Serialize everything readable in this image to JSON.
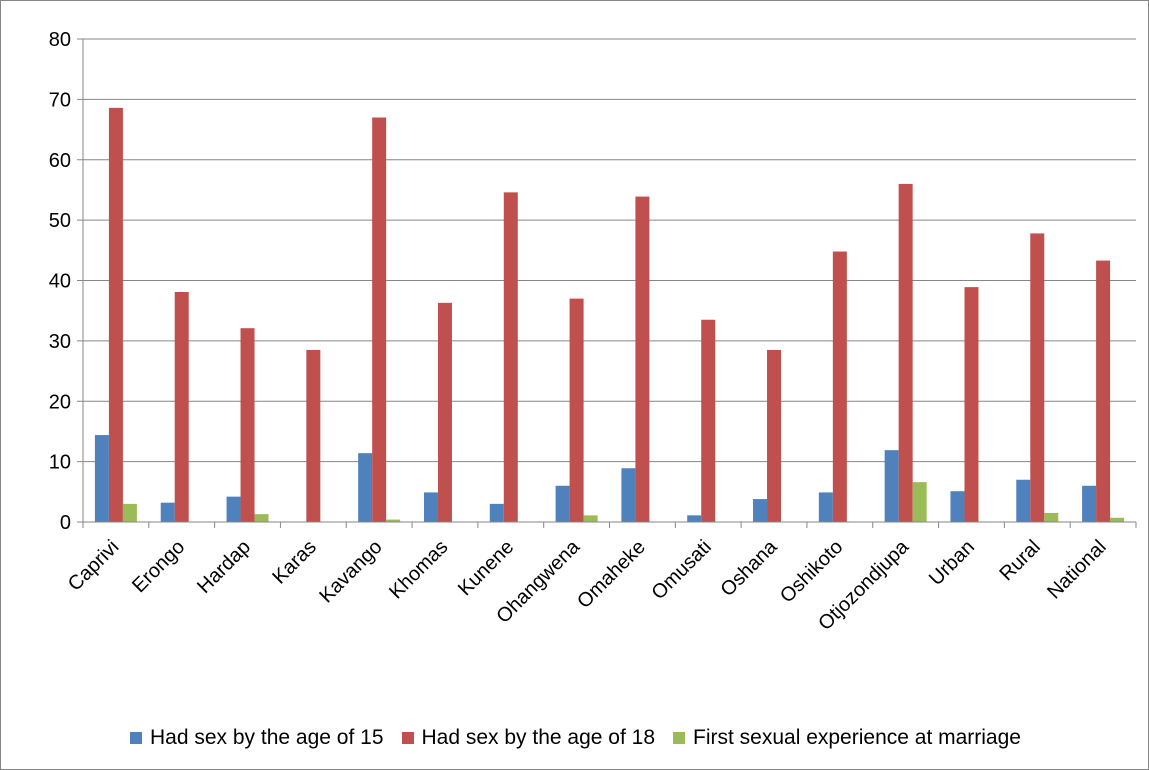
{
  "chart_data": {
    "type": "bar",
    "title": "",
    "xlabel": "",
    "ylabel": "",
    "ylim": [
      0,
      80
    ],
    "yticks": [
      0,
      10,
      20,
      30,
      40,
      50,
      60,
      70,
      80
    ],
    "grid": true,
    "legend_position": "bottom",
    "categories": [
      "Caprivi",
      "Erongo",
      "Hardap",
      "Karas",
      "Kavango",
      "Khomas",
      "Kunene",
      "Ohangwena",
      "Omaheke",
      "Omusati",
      "Oshana",
      "Oshikoto",
      "Otjozondjupa",
      "Urban",
      "Rural",
      "National"
    ],
    "series": [
      {
        "name": "Had sex by the age of 15",
        "color": "#4F81BD",
        "values": [
          14.4,
          3.2,
          4.2,
          0,
          11.4,
          4.9,
          3.0,
          6.0,
          8.9,
          1.1,
          3.8,
          4.9,
          11.9,
          5.1,
          7.0,
          6.0
        ]
      },
      {
        "name": "Had sex by the age of 18",
        "color": "#C0504D",
        "values": [
          68.6,
          38.1,
          32.1,
          28.5,
          67.0,
          36.3,
          54.6,
          37.0,
          53.9,
          33.5,
          28.5,
          44.8,
          56.0,
          38.9,
          47.8,
          43.3
        ]
      },
      {
        "name": "First sexual experience at marriage",
        "color": "#9BBB59",
        "values": [
          3.0,
          0,
          1.3,
          0,
          0.4,
          0,
          0,
          1.1,
          0,
          0,
          0,
          0,
          6.6,
          0,
          1.5,
          0.7
        ]
      }
    ]
  }
}
